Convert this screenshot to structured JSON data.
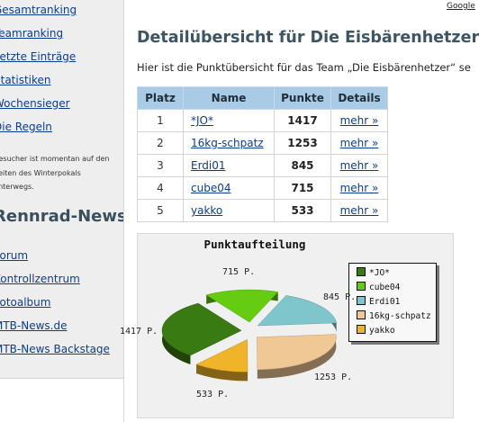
{
  "sidebar": {
    "nav": [
      "Gesamtranking",
      "Teamranking",
      "Letzte Einträge",
      "Statistiken",
      "Wochensieger",
      "Die Regeln"
    ],
    "info_lines": [
      "Besucher ist momentan auf den",
      "Seiten des Winterpokals",
      "unterwegs."
    ],
    "section_title": "Rennrad-News",
    "nav2": [
      "Forum",
      "Kontrollzentrum",
      "Fotoalbum",
      "MTB-News.de",
      "MTB-News Backstage"
    ]
  },
  "header": {
    "google_text": "Google"
  },
  "page": {
    "title": "Detailübersicht für Die Eisbärenhetzer",
    "intro": "Hier ist die Punktübersicht für das Team „Die Eisbärenhetzer“ se"
  },
  "table": {
    "headers": [
      "Platz",
      "Name",
      "Punkte",
      "Details"
    ],
    "rows": [
      {
        "rank": "1",
        "name": "*JO*",
        "points": "1417",
        "details": "mehr »"
      },
      {
        "rank": "2",
        "name": "16kg-schpatz",
        "points": "1253",
        "details": "mehr »"
      },
      {
        "rank": "3",
        "name": "Erdi01",
        "points": "845",
        "details": "mehr »"
      },
      {
        "rank": "4",
        "name": "cube04",
        "points": "715",
        "details": "mehr »"
      },
      {
        "rank": "5",
        "name": "yakko",
        "points": "533",
        "details": "mehr »"
      }
    ]
  },
  "chart_data": {
    "type": "pie",
    "title": "Punktaufteilung",
    "slices": [
      {
        "name": "*JO*",
        "value": 1417,
        "label": "1417 P.",
        "color": "#3a7a12"
      },
      {
        "name": "cube04",
        "value": 715,
        "label": "715 P.",
        "color": "#66cc11"
      },
      {
        "name": "Erdi01",
        "value": 845,
        "label": "845 P.",
        "color": "#7fc6cc"
      },
      {
        "name": "16kg-schpatz",
        "value": 1253,
        "label": "1253 P.",
        "color": "#f0c896"
      },
      {
        "name": "yakko",
        "value": 533,
        "label": "533 P.",
        "color": "#f0b42a"
      }
    ],
    "legend_order": [
      "*JO*",
      "cube04",
      "Erdi01",
      "16kg-schpatz",
      "yakko"
    ],
    "legend_position": "right"
  }
}
